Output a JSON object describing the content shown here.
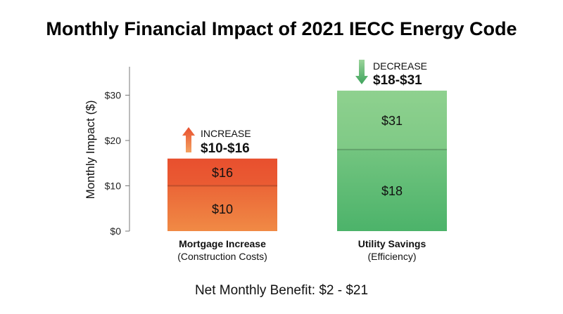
{
  "chart_data": {
    "type": "bar",
    "title": "Monthly Financial Impact of 2021 IECC Energy Code",
    "xlabel": "",
    "ylabel": "Monthly Impact ($)",
    "ylim": [
      0,
      35
    ],
    "yticks": [
      0,
      10,
      20,
      30
    ],
    "ytick_labels": [
      "$0",
      "$10",
      "$20",
      "$30"
    ],
    "grid": false,
    "categories": [
      {
        "name": "Mortgage Increase",
        "sub": "(Construction Costs)"
      },
      {
        "name": "Utility Savings",
        "sub": "(Efficiency)"
      }
    ],
    "bars": [
      {
        "low": 10,
        "high": 16,
        "low_label": "$10",
        "high_label": "$16",
        "annotation_word": "INCREASE",
        "annotation_range": "$10-$16",
        "annotation_direction": "up",
        "colors": {
          "top": "#e8502f",
          "bottom": "#f08a45",
          "arrow_top": "#e8502f",
          "arrow_bottom": "#f4a261"
        }
      },
      {
        "low": 18,
        "high": 31,
        "low_label": "$18",
        "high_label": "$31",
        "annotation_word": "DECREASE",
        "annotation_range": "$18-$31",
        "annotation_direction": "down",
        "colors": {
          "top": "#8fd18f",
          "bottom": "#4cb36a",
          "arrow_top": "#9ad49a",
          "arrow_bottom": "#3ea35c"
        }
      }
    ],
    "footer": "Net Monthly Benefit: $2 - $21"
  }
}
